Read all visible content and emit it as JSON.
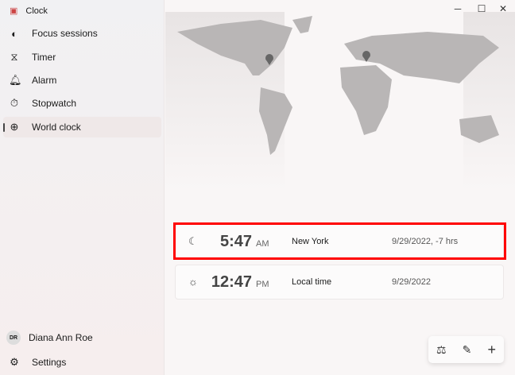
{
  "app": {
    "title": "Clock"
  },
  "sidebar": {
    "items": [
      {
        "label": "Focus sessions",
        "icon": "focus-icon"
      },
      {
        "label": "Timer",
        "icon": "hourglass-icon"
      },
      {
        "label": "Alarm",
        "icon": "bell-icon"
      },
      {
        "label": "Stopwatch",
        "icon": "stopwatch-icon"
      },
      {
        "label": "World clock",
        "icon": "globe-icon",
        "selected": true
      }
    ],
    "user": {
      "initials": "DR",
      "name": "Diana Ann Roe"
    },
    "settings": "Settings"
  },
  "clocks": [
    {
      "icon": "moon-icon",
      "time": "5:47",
      "ampm": "AM",
      "city": "New York",
      "date": "9/29/2022, -7 hrs",
      "highlighted": true
    },
    {
      "icon": "sun-icon",
      "time": "12:47",
      "ampm": "PM",
      "city": "Local time",
      "date": "9/29/2022"
    }
  ],
  "window": {
    "minimize": "─",
    "maximize": "☐",
    "close": "✕"
  },
  "toolbar": {
    "compare": "⚖",
    "edit": "✎",
    "add": "+"
  },
  "icons": {
    "app": "▣",
    "focus": "◐",
    "timer": "⧖",
    "alarm": "🔔︎",
    "stopwatch": "⏱︎",
    "world": "⊕",
    "settings": "⚙",
    "moon": "☾",
    "sun": "☼"
  }
}
